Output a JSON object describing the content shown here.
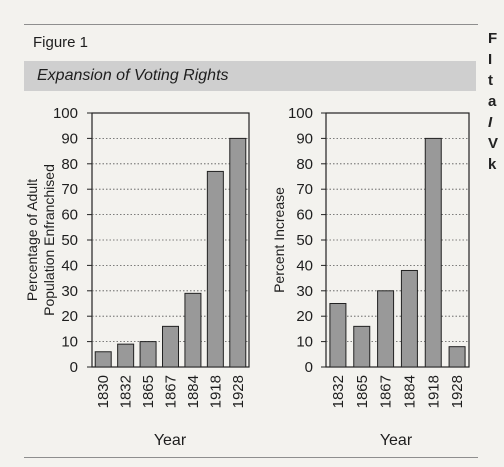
{
  "figure_label": "Figure 1",
  "title": "Expansion of Voting Rights",
  "chart_data": [
    {
      "type": "bar",
      "title": "",
      "categories": [
        "1830",
        "1832",
        "1865",
        "1867",
        "1884",
        "1918",
        "1928"
      ],
      "values": [
        6,
        9,
        10,
        16,
        29,
        77,
        90
      ],
      "xlabel": "Year",
      "ylabel": "Percentage of Adult Population Enfranchised",
      "ylabel_lines": [
        "Percentage of Adult",
        "Population Enfranchised"
      ],
      "ylim": [
        0,
        100
      ],
      "yticks": [
        0,
        10,
        20,
        30,
        40,
        50,
        60,
        70,
        80,
        90,
        100
      ],
      "grid": true,
      "bar_color": "#999999"
    },
    {
      "type": "bar",
      "title": "",
      "categories": [
        "1832",
        "1865",
        "1867",
        "1884",
        "1918",
        "1928"
      ],
      "values": [
        25,
        16,
        30,
        38,
        90,
        8
      ],
      "xlabel": "Year",
      "ylabel": "Percent Increase",
      "ylabel_lines": [
        "Percent Increase"
      ],
      "ylim": [
        0,
        100
      ],
      "yticks": [
        0,
        10,
        20,
        30,
        40,
        50,
        60,
        70,
        80,
        90,
        100
      ],
      "grid": true,
      "bar_color": "#999999"
    }
  ],
  "cropped_text": [
    "F",
    "I",
    "t",
    "a",
    "I",
    "V",
    "k"
  ]
}
